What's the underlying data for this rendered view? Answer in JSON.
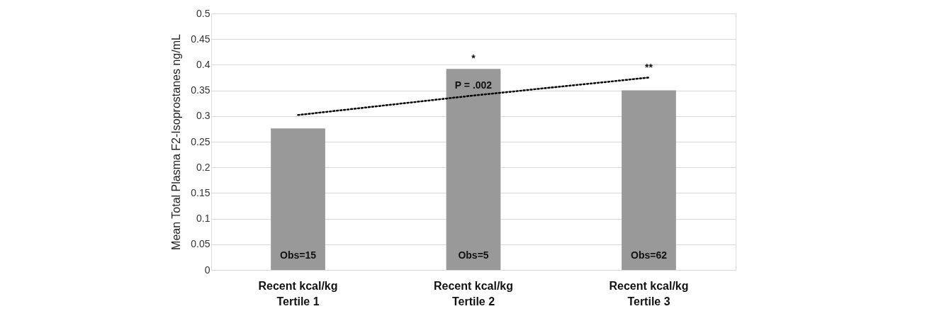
{
  "chart_data": {
    "type": "bar",
    "ylabel": "Mean Total Plasma F2-Isoprostanes ng/mL",
    "categories": [
      "Recent kcal/kg\nTertile 1",
      "Recent kcal/kg\nTertile 2",
      "Recent kcal/kg\nTertile 3"
    ],
    "series": [
      {
        "color": "#999999",
        "values": [
          0.276,
          0.392,
          0.35
        ]
      },
      {
        "type": "line",
        "color": "#000000",
        "line_style": "dotted",
        "x": [
          "Recent kcal/kg\nTertile 1",
          "Recent kcal/kg\nTertile 2",
          "Recent kcal/kg\nTertile 3"
        ],
        "values": [
          0.302,
          0.34,
          0.375
        ]
      }
    ],
    "ylim": [
      0,
      0.5
    ],
    "yticks": [
      0,
      0.05,
      0.1,
      0.15,
      0.2,
      0.25,
      0.3,
      0.35,
      0.4,
      0.45,
      0.5
    ],
    "grid": "y",
    "annotations": [
      {
        "text": "Obs=15",
        "x": "Recent kcal/kg\nTertile 1",
        "y": 0
      },
      {
        "text": "Obs=5",
        "x": "Recent kcal/kg\nTertile 2",
        "y": 0
      },
      {
        "text": "Obs=62",
        "x": "Recent kcal/kg\nTertile 3",
        "y": 0
      },
      {
        "text": "*",
        "x": "Recent kcal/kg\nTertile 2",
        "y": 0.392
      },
      {
        "text": "P = .002",
        "x": "Recent kcal/kg\nTertile 2",
        "y": 0.34
      },
      {
        "text": "**",
        "x": "Recent kcal/kg\nTertile 3",
        "y": 0.375
      }
    ]
  }
}
